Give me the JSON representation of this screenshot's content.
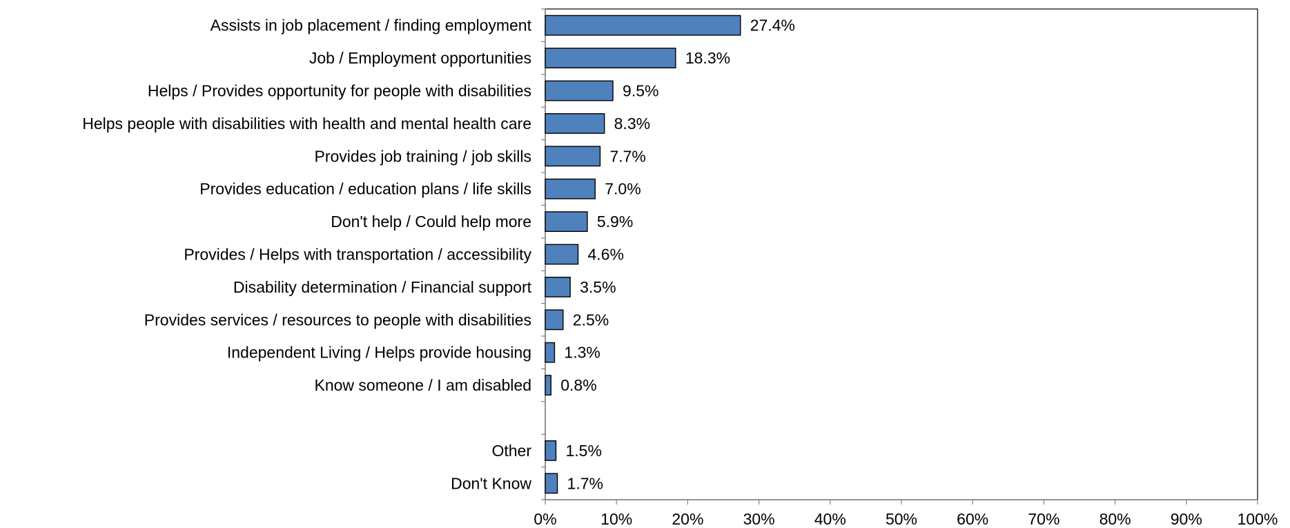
{
  "chart_data": {
    "type": "bar",
    "orientation": "horizontal",
    "categories": [
      "Assists in job placement / finding employment",
      "Job / Employment opportunities",
      "Helps / Provides opportunity for people with disabilities",
      "Helps people with disabilities with health and mental health care",
      "Provides job training / job skills",
      "Provides education / education plans / life skills",
      "Don't help / Could help more",
      "Provides / Helps with transportation / accessibility",
      "Disability determination / Financial support",
      "Provides services / resources to people with disabilities",
      "Independent Living / Helps provide housing",
      "Know someone / I am disabled",
      "",
      "Other",
      "Don't Know"
    ],
    "values": [
      27.4,
      18.3,
      9.5,
      8.3,
      7.7,
      7.0,
      5.9,
      4.6,
      3.5,
      2.5,
      1.3,
      0.8,
      null,
      1.5,
      1.7
    ],
    "value_labels": [
      "27.4%",
      "18.3%",
      "9.5%",
      "8.3%",
      "7.7%",
      "7.0%",
      "5.9%",
      "4.6%",
      "3.5%",
      "2.5%",
      "1.3%",
      "0.8%",
      "",
      "1.5%",
      "1.7%"
    ],
    "xlim": [
      0,
      100
    ],
    "x_ticks": [
      0,
      10,
      20,
      30,
      40,
      50,
      60,
      70,
      80,
      90,
      100
    ],
    "x_tick_labels": [
      "0%",
      "10%",
      "20%",
      "30%",
      "40%",
      "50%",
      "60%",
      "70%",
      "80%",
      "90%",
      "100%"
    ],
    "title": "",
    "xlabel": "",
    "ylabel": "",
    "grid": false,
    "legend": "none",
    "bar_color": "#4F81BD",
    "bar_edge_color": "#000000"
  }
}
